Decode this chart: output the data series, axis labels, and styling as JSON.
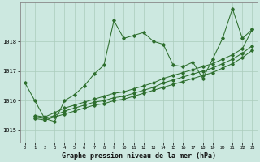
{
  "xlabel": "Graphe pression niveau de la mer (hPa)",
  "xlim": [
    -0.5,
    23.5
  ],
  "ylim": [
    1014.6,
    1019.3
  ],
  "yticks": [
    1015,
    1016,
    1017,
    1018
  ],
  "xticks": [
    0,
    1,
    2,
    3,
    4,
    5,
    6,
    7,
    8,
    9,
    10,
    11,
    12,
    13,
    14,
    15,
    16,
    17,
    18,
    19,
    20,
    21,
    22,
    23
  ],
  "bg_color": "#cce8e0",
  "line_color": "#2d6e2d",
  "grid_color": "#aaccbb",
  "series": [
    {
      "x": [
        0,
        1,
        2,
        3,
        4,
        5,
        6,
        7,
        8,
        9,
        10,
        11,
        12,
        13,
        14,
        15,
        16,
        17,
        18,
        19,
        20,
        21,
        22,
        23
      ],
      "y": [
        1016.6,
        1016.0,
        1015.4,
        1015.3,
        1016.0,
        1016.2,
        1016.5,
        1016.9,
        1017.2,
        1018.7,
        1018.1,
        1018.2,
        1018.3,
        1018.0,
        1017.9,
        1017.2,
        1017.15,
        1017.3,
        1016.75,
        1017.4,
        1018.1,
        1019.1,
        1018.1,
        1018.4
      ]
    },
    {
      "x": [
        1,
        2,
        3,
        4,
        5,
        6,
        7,
        8,
        9,
        10,
        11,
        12,
        13,
        14,
        15,
        16,
        17,
        18,
        19,
        20,
        21,
        22,
        23
      ],
      "y": [
        1015.4,
        1015.35,
        1015.45,
        1015.55,
        1015.65,
        1015.75,
        1015.85,
        1015.9,
        1016.0,
        1016.05,
        1016.15,
        1016.25,
        1016.35,
        1016.45,
        1016.55,
        1016.65,
        1016.75,
        1016.85,
        1016.95,
        1017.1,
        1017.25,
        1017.45,
        1017.7
      ]
    },
    {
      "x": [
        1,
        2,
        3,
        4,
        5,
        6,
        7,
        8,
        9,
        10,
        11,
        12,
        13,
        14,
        15,
        16,
        17,
        18,
        19,
        20,
        21,
        22,
        23
      ],
      "y": [
        1015.45,
        1015.4,
        1015.5,
        1015.65,
        1015.75,
        1015.85,
        1015.95,
        1016.0,
        1016.1,
        1016.15,
        1016.25,
        1016.35,
        1016.45,
        1016.6,
        1016.7,
        1016.8,
        1016.9,
        1017.0,
        1017.1,
        1017.25,
        1017.4,
        1017.6,
        1017.85
      ]
    },
    {
      "x": [
        1,
        2,
        3,
        4,
        5,
        6,
        7,
        8,
        9,
        10,
        11,
        12,
        13,
        14,
        15,
        16,
        17,
        18,
        19,
        20,
        21,
        22,
        23
      ],
      "y": [
        1015.5,
        1015.45,
        1015.6,
        1015.75,
        1015.85,
        1015.95,
        1016.05,
        1016.15,
        1016.25,
        1016.3,
        1016.4,
        1016.5,
        1016.6,
        1016.75,
        1016.85,
        1016.95,
        1017.05,
        1017.15,
        1017.25,
        1017.4,
        1017.55,
        1017.75,
        1018.4
      ]
    }
  ]
}
